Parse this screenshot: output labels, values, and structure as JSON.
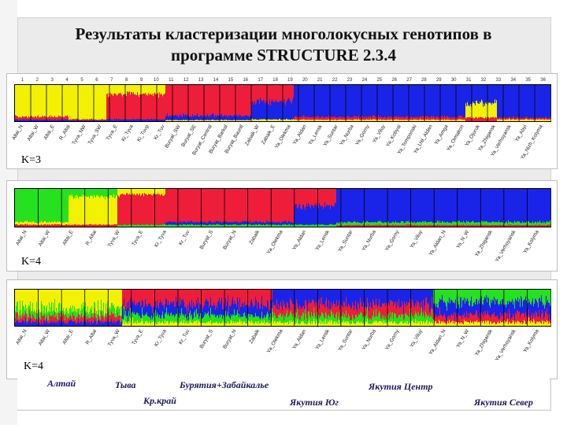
{
  "title_line1": "Результаты кластеризации многолокусных генотипов в",
  "title_line2": "программе STRUCTURE 2.3.4",
  "colors": {
    "yellow": "#f2f200",
    "red": "#ee1d3a",
    "blue": "#1a24e8",
    "green": "#25e11e"
  },
  "top_numbers": [
    "1",
    "2",
    "3",
    "4",
    "5",
    "6",
    "7",
    "8",
    "9",
    "10",
    "11",
    "12",
    "13",
    "14",
    "15",
    "16",
    "17",
    "18",
    "19",
    "20",
    "21",
    "22",
    "23",
    "24",
    "25",
    "26",
    "27",
    "28",
    "29",
    "30",
    "31",
    "32",
    "33",
    "34",
    "35",
    "36"
  ],
  "panels": [
    {
      "k_label": "K=3",
      "populations": [
        "Altai_N",
        "Altai_W",
        "Altai_E",
        "R_Altai",
        "Tyva_NW",
        "Tyva_SW",
        "Tyva_E",
        "Ki_Tyva",
        "Ki_Tuvp",
        "Kr_Tuv",
        "Buryat_SW",
        "Buryat_SE",
        "Buryat_Central",
        "Buryat_Barkal",
        "Buryat_Bauntl",
        "Zabaik_W",
        "Zabaik_E",
        "Ya_Olekma",
        "Ya_Aldan",
        "Ya_Lensk",
        "Ya_Suntar",
        "Ya_Nurba",
        "Ya_Gorny",
        "Ya_Viluy",
        "Ya_Kobyai",
        "Ya_Tomponski",
        "Ya_Ust_Aldan",
        "Ya_Amga",
        "Ya_Oimakon",
        "Ya_Ojuruk",
        "Ya_Zhigansk",
        "Ya_Verhoyansk",
        "Ya_Abyi",
        "Ya_Nizh_Kolyma"
      ]
    },
    {
      "k_label": "K=4",
      "populations": [
        "Altai_N",
        "Altai_W",
        "Altai_E",
        "R_Altai",
        "Tyva_W",
        "Tyva_E",
        "Kr_Tyva",
        "Kr_Tuv",
        "Buryat_S",
        "Buryat_N",
        "Zabaik",
        "Ya_Olekma",
        "Ya_Aldan",
        "Ya_Lensk",
        "Ya_Suntar",
        "Ya_Nurba",
        "Ya_Gorny",
        "Ya_Viluy",
        "Ya_Aldan_N",
        "Ya_N_W",
        "Ya_Zhigansk",
        "Ya_Verhoyansk",
        "Ya_Kolyma"
      ]
    },
    {
      "k_label": "K=4",
      "populations": [
        "Altai_N",
        "Altai_W",
        "Altai_E",
        "R_Altai",
        "Tyva_W",
        "Tyva_E",
        "Kr_Tyva",
        "Kr_Tuv",
        "Buryat_S",
        "Buryat_N",
        "Zabaik",
        "Ya_Olekma",
        "Ya_Aldan",
        "Ya_Lensk",
        "Ya_Suntar",
        "Ya_Nurba",
        "Ya_Gorny",
        "Ya_Viluy",
        "Ya_Aldan_N",
        "Ya_N_W",
        "Ya_Zhigansk",
        "Ya_Verhoyansk",
        "Ya_Kolyma"
      ]
    }
  ],
  "regions": {
    "altai": "Алтай",
    "tyva": "Тыва",
    "buryatia": "Бурятия+Забайкалье",
    "yakutia_center": "Якутия Центр",
    "krasnoyarsk": "Кр.край",
    "yakutia_south": "Якутия Юг",
    "yakutia_north": "Якутия Север"
  }
}
